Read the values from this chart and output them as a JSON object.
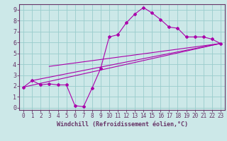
{
  "xlabel": "Windchill (Refroidissement éolien,°C)",
  "bg_color": "#cce8e8",
  "plot_bg_color": "#cce8e8",
  "line_color": "#aa00aa",
  "grid_color": "#99cccc",
  "axis_color": "#663366",
  "xlim": [
    -0.5,
    23.5
  ],
  "ylim": [
    -0.2,
    9.5
  ],
  "xticks": [
    0,
    1,
    2,
    3,
    4,
    5,
    6,
    7,
    8,
    9,
    10,
    11,
    12,
    13,
    14,
    15,
    16,
    17,
    18,
    19,
    20,
    21,
    22,
    23
  ],
  "yticks": [
    0,
    1,
    2,
    3,
    4,
    5,
    6,
    7,
    8,
    9
  ],
  "line1_x": [
    0,
    1,
    2,
    3,
    4,
    5,
    6,
    7,
    8,
    9,
    10,
    11,
    12,
    13,
    14,
    15,
    16,
    17,
    18,
    19,
    20,
    21,
    22,
    23
  ],
  "line1_y": [
    1.9,
    2.5,
    2.1,
    2.2,
    2.1,
    2.1,
    0.2,
    0.1,
    1.8,
    3.6,
    6.5,
    6.7,
    7.8,
    8.6,
    9.2,
    8.7,
    8.1,
    7.4,
    7.3,
    6.5,
    6.5,
    6.5,
    6.3,
    5.9
  ],
  "line2_x": [
    0,
    23
  ],
  "line2_y": [
    1.9,
    5.9
  ],
  "line3_x": [
    1,
    23
  ],
  "line3_y": [
    2.5,
    5.9
  ],
  "line4_x": [
    3,
    23
  ],
  "line4_y": [
    3.8,
    5.9
  ],
  "xlabel_fontsize": 6,
  "tick_fontsize": 5.5
}
